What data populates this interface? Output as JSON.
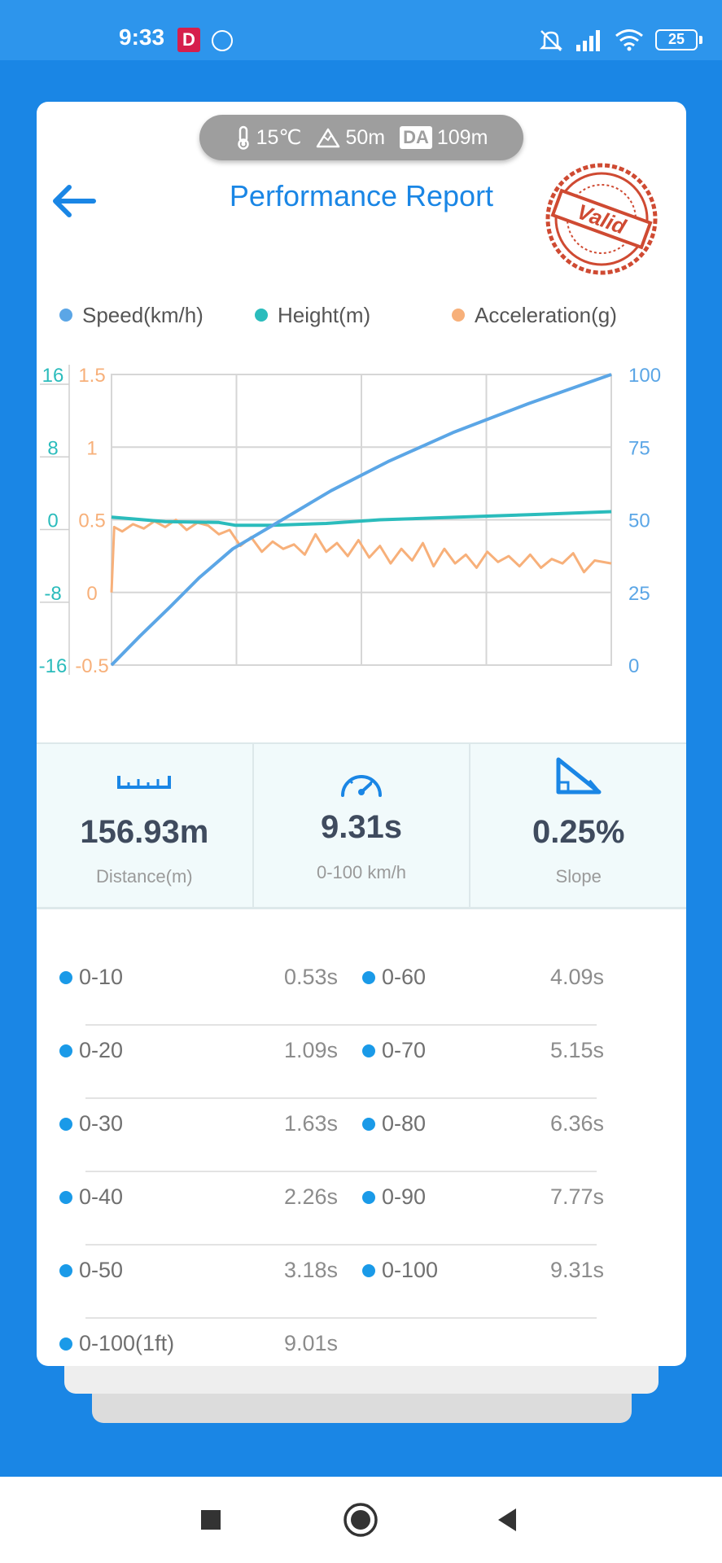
{
  "status_bar": {
    "time": "9:33",
    "notification_badge": "D",
    "battery": "25",
    "icons": [
      "notification-d-icon",
      "circle-app-icon",
      "mute-icon",
      "signal-icon",
      "wifi-icon",
      "battery-icon"
    ]
  },
  "env": {
    "temperature": "15℃",
    "altitude": "50m",
    "da_label": "DA",
    "density_altitude": "109m"
  },
  "header": {
    "title": "Performance Report",
    "stamp_text": "Valid"
  },
  "legend": {
    "speed": "Speed(km/h)",
    "height": "Height(m)",
    "acceleration": "Acceleration(g)"
  },
  "colors": {
    "accent": "#1a86e5",
    "speed": "#5ba6e6",
    "height": "#2bbcbc",
    "acceleration": "#f7b07a",
    "stamp": "#cf4a32"
  },
  "chart_data": {
    "type": "line",
    "height_axis": {
      "ticks": [
        "16",
        "8",
        "0",
        "-8",
        "-16"
      ],
      "range": [
        -16,
        16
      ]
    },
    "acceleration_axis": {
      "ticks": [
        "1.5",
        "1",
        "0.5",
        "0",
        "-0.5"
      ],
      "range": [
        -0.5,
        1.5
      ]
    },
    "speed_axis": {
      "ticks": [
        "100",
        "75",
        "50",
        "25",
        "0"
      ],
      "range": [
        0,
        100
      ]
    },
    "x_range": [
      0,
      9.31
    ],
    "grid": true,
    "series": [
      {
        "name": "Speed(km/h)",
        "axis": "speed",
        "x": [
          0,
          0.53,
          1.09,
          1.63,
          2.26,
          3.18,
          4.09,
          5.15,
          6.36,
          7.77,
          9.31
        ],
        "y": [
          0,
          10,
          20,
          30,
          40,
          50,
          60,
          70,
          80,
          90,
          100
        ]
      },
      {
        "name": "Height(m)",
        "axis": "height",
        "x": [
          0,
          1,
          2,
          2.3,
          3,
          4,
          5,
          6,
          7,
          8,
          9.31
        ],
        "y": [
          0.3,
          -0.2,
          -0.3,
          -0.6,
          -0.6,
          -0.4,
          0,
          0.2,
          0.4,
          0.6,
          0.9
        ]
      },
      {
        "name": "Acceleration(g)",
        "axis": "acceleration",
        "x": [
          0,
          0.05,
          0.2,
          0.4,
          0.6,
          0.8,
          1.0,
          1.2,
          1.4,
          1.6,
          1.8,
          2.0,
          2.2,
          2.4,
          2.6,
          2.8,
          3.0,
          3.2,
          3.4,
          3.6,
          3.8,
          4.0,
          4.2,
          4.4,
          4.6,
          4.8,
          5.0,
          5.2,
          5.4,
          5.6,
          5.8,
          6.0,
          6.2,
          6.4,
          6.6,
          6.8,
          7.0,
          7.2,
          7.4,
          7.6,
          7.8,
          8.0,
          8.2,
          8.4,
          8.6,
          8.8,
          9.0,
          9.31
        ],
        "y": [
          0,
          0.45,
          0.42,
          0.47,
          0.44,
          0.49,
          0.45,
          0.5,
          0.43,
          0.48,
          0.46,
          0.4,
          0.43,
          0.32,
          0.38,
          0.28,
          0.35,
          0.3,
          0.33,
          0.26,
          0.4,
          0.28,
          0.34,
          0.25,
          0.36,
          0.24,
          0.32,
          0.2,
          0.3,
          0.22,
          0.34,
          0.18,
          0.3,
          0.2,
          0.26,
          0.17,
          0.28,
          0.21,
          0.25,
          0.18,
          0.26,
          0.17,
          0.23,
          0.2,
          0.27,
          0.14,
          0.22,
          0.2
        ]
      }
    ]
  },
  "stats": {
    "distance_value": "156.93m",
    "distance_label": "Distance(m)",
    "time_value": "9.31s",
    "time_label": "0-100 km/h",
    "slope_value": "0.25%",
    "slope_label": "Slope"
  },
  "splits": [
    {
      "left_label": "0-10",
      "left_time": "0.53s",
      "right_label": "0-60",
      "right_time": "4.09s"
    },
    {
      "left_label": "0-20",
      "left_time": "1.09s",
      "right_label": "0-70",
      "right_time": "5.15s"
    },
    {
      "left_label": "0-30",
      "left_time": "1.63s",
      "right_label": "0-80",
      "right_time": "6.36s"
    },
    {
      "left_label": "0-40",
      "left_time": "2.26s",
      "right_label": "0-90",
      "right_time": "7.77s"
    },
    {
      "left_label": "0-50",
      "left_time": "3.18s",
      "right_label": "0-100",
      "right_time": "9.31s"
    },
    {
      "left_label": "0-100(1ft)",
      "left_time": "9.01s",
      "right_label": "",
      "right_time": ""
    }
  ]
}
